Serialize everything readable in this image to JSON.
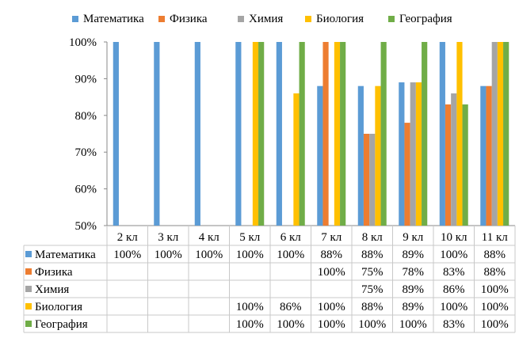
{
  "chart_data": {
    "type": "bar",
    "title": "",
    "xlabel": "",
    "ylabel": "",
    "ylim": [
      50,
      100
    ],
    "yticks": [
      "50%",
      "60%",
      "70%",
      "80%",
      "90%",
      "100%"
    ],
    "grid": false,
    "legend": "top",
    "categories": [
      "2 кл",
      "3 кл",
      "4 кл",
      "5 кл",
      "6 кл",
      "7 кл",
      "8 кл",
      "9 кл",
      "10 кл",
      "11 кл"
    ],
    "series": [
      {
        "name": "Математика",
        "color": "#5B9BD5",
        "values": [
          100,
          100,
          100,
          100,
          100,
          88,
          88,
          89,
          100,
          88
        ]
      },
      {
        "name": "Физика",
        "color": "#ED7D31",
        "values": [
          null,
          null,
          null,
          null,
          null,
          100,
          75,
          78,
          83,
          88
        ]
      },
      {
        "name": "Химия",
        "color": "#A5A5A5",
        "values": [
          null,
          null,
          null,
          null,
          null,
          null,
          75,
          89,
          86,
          100
        ]
      },
      {
        "name": "Биология",
        "color": "#FFC000",
        "values": [
          null,
          null,
          null,
          100,
          86,
          100,
          88,
          89,
          100,
          100
        ]
      },
      {
        "name": "География",
        "color": "#70AD47",
        "values": [
          null,
          null,
          null,
          100,
          100,
          100,
          100,
          100,
          83,
          100
        ]
      }
    ],
    "table_labels": [
      [
        "100%",
        "100%",
        "100%",
        "100%",
        "100%",
        "88%",
        "88%",
        "89%",
        "100%",
        "88%"
      ],
      [
        "",
        "",
        "",
        "",
        "",
        "100%",
        "75%",
        "78%",
        "83%",
        "88%"
      ],
      [
        "",
        "",
        "",
        "",
        "",
        "",
        "75%",
        "89%",
        "86%",
        "100%"
      ],
      [
        "",
        "",
        "",
        "100%",
        "86%",
        "100%",
        "88%",
        "89%",
        "100%",
        "100%"
      ],
      [
        "",
        "",
        "",
        "100%",
        "100%",
        "100%",
        "100%",
        "100%",
        "83%",
        "100%"
      ]
    ]
  }
}
